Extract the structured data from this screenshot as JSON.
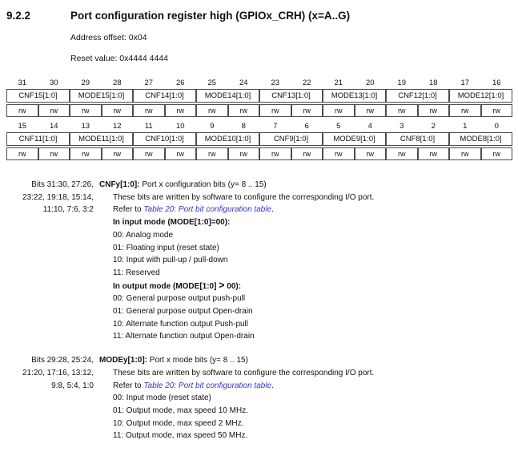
{
  "page": {
    "section_number": "9.2.2",
    "title": "Port configuration register high (GPIOx_CRH) (x=A..G)",
    "address_offset": "Address offset: 0x04",
    "reset_value": "Reset value: 0x4444 4444"
  },
  "link_color": "#3434cc",
  "tables": [
    {
      "bits": [
        "31",
        "30",
        "29",
        "28",
        "27",
        "26",
        "25",
        "24",
        "23",
        "22",
        "21",
        "20",
        "19",
        "18",
        "17",
        "16"
      ],
      "fields": [
        "CNF15[1:0]",
        "MODE15[1:0]",
        "CNF14[1:0]",
        "MODE14[1:0]",
        "CNF13[1:0]",
        "MODE13[1:0]",
        "CNF12[1:0]",
        "MODE12[1:0]"
      ],
      "access": [
        "rw",
        "rw",
        "rw",
        "rw",
        "rw",
        "rw",
        "rw",
        "rw",
        "rw",
        "rw",
        "rw",
        "rw",
        "rw",
        "rw",
        "rw",
        "rw"
      ]
    },
    {
      "bits": [
        "15",
        "14",
        "13",
        "12",
        "11",
        "10",
        "9",
        "8",
        "7",
        "6",
        "5",
        "4",
        "3",
        "2",
        "1",
        "0"
      ],
      "fields": [
        "CNF11[1:0]",
        "MODE11[1:0]",
        "CNF10[1:0]",
        "MODE10[1:0]",
        "CNF9[1:0]",
        "MODE9[1:0]",
        "CNF8[1:0]",
        "MODE8[1:0]"
      ],
      "access": [
        "rw",
        "rw",
        "rw",
        "rw",
        "rw",
        "rw",
        "rw",
        "rw",
        "rw",
        "rw",
        "rw",
        "rw",
        "rw",
        "rw",
        "rw",
        "rw"
      ]
    }
  ],
  "descriptions": [
    {
      "bits_lines": [
        "Bits 31:30, 27:26,",
        "23:22, 19:18, 15:14,",
        "11:10, 7:6, 3:2"
      ],
      "field_name": "CNFy[1:0]:",
      "field_desc": " Port x configuration bits (y= 8 .. 15)",
      "body": [
        {
          "style": "plain",
          "text": "These bits are written by software to configure the corresponding I/O port."
        },
        {
          "style": "refer",
          "prefix": "Refer to ",
          "link": "Table 20: Port bit configuration table",
          "suffix": "."
        },
        {
          "style": "bold",
          "text": "In input mode (MODE[1:0]=00):"
        },
        {
          "style": "plain",
          "text": "00: Analog mode"
        },
        {
          "style": "plain",
          "text": "01: Floating input (reset state)"
        },
        {
          "style": "plain",
          "text": "10: Input with pull-up / pull-down"
        },
        {
          "style": "plain",
          "text": "11: Reserved"
        },
        {
          "style": "bold_gt",
          "prefix": "In output mode (MODE[1:0] ",
          "gt": ">",
          "suffix": " 00):"
        },
        {
          "style": "plain",
          "text": "00: General purpose output push-pull"
        },
        {
          "style": "plain",
          "text": "01: General purpose output Open-drain"
        },
        {
          "style": "plain",
          "text": "10: Alternate function output Push-pull"
        },
        {
          "style": "plain",
          "text": "11: Alternate function output Open-drain"
        }
      ]
    },
    {
      "bits_lines": [
        "Bits 29:28, 25:24,",
        "21:20, 17:16, 13:12,",
        "9:8, 5:4, 1:0"
      ],
      "field_name": "MODEy[1:0]:",
      "field_desc": " Port x mode bits (y= 8 .. 15)",
      "body": [
        {
          "style": "plain",
          "text": "These bits are written by software to configure the corresponding I/O port."
        },
        {
          "style": "refer",
          "prefix": "Refer to ",
          "link": "Table 20: Port bit configuration table",
          "suffix": "."
        },
        {
          "style": "plain",
          "text": "00: Input mode (reset state)"
        },
        {
          "style": "plain",
          "text": "01: Output mode, max speed 10 MHz."
        },
        {
          "style": "plain",
          "text": "10: Output mode, max speed 2 MHz."
        },
        {
          "style": "plain",
          "text": "11: Output mode, max speed 50 MHz."
        }
      ]
    }
  ]
}
